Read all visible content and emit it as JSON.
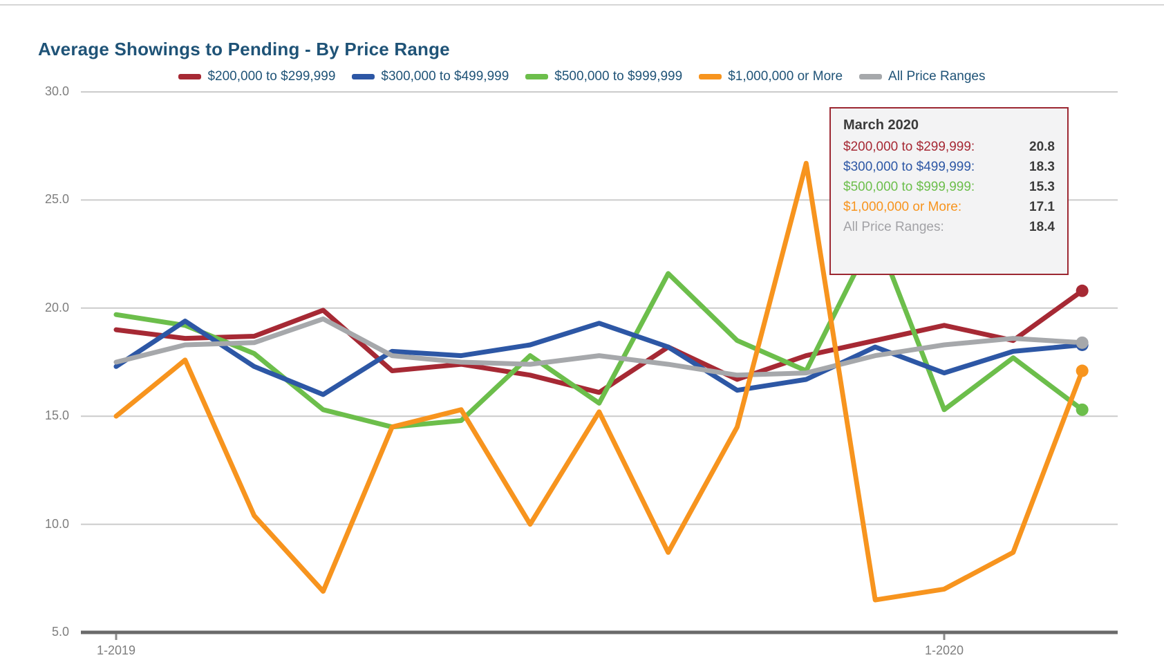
{
  "page": {
    "title": "Average Showings to Pending - By Price Range"
  },
  "colors": {
    "title_text": "#1f5377",
    "axis_text": "#7e7e7e",
    "gridline": "#cbcbcb",
    "axis_line": "#6a6a6a",
    "tooltip_border": "#9c2731",
    "tooltip_background": "#f3f3f4",
    "tooltip_value_text": "#3b3b3b"
  },
  "chart_data": {
    "type": "line",
    "title": "Average Showings to Pending - By Price Range",
    "legend_position": "top",
    "grid": "horizontal",
    "x_axis": {
      "months": [
        "1-2019",
        "2-2019",
        "3-2019",
        "4-2019",
        "5-2019",
        "6-2019",
        "7-2019",
        "8-2019",
        "9-2019",
        "10-2019",
        "11-2019",
        "12-2019",
        "1-2020",
        "2-2020",
        "3-2020"
      ],
      "tick_labels_shown": [
        {
          "label": "1-2019",
          "month_index": 0
        },
        {
          "label": "1-2020",
          "month_index": 12
        }
      ]
    },
    "y_axis": {
      "range": [
        5.0,
        30.0
      ],
      "tick_labels": [
        {
          "label": "30.0",
          "value": 30
        },
        {
          "label": "25.0",
          "value": 25
        },
        {
          "label": "20.0",
          "value": 20
        },
        {
          "label": "15.0",
          "value": 15
        },
        {
          "label": "10.0",
          "value": 10
        },
        {
          "label": "5.0",
          "value": 5
        }
      ],
      "gridline_values": [
        30,
        25,
        20,
        15,
        10
      ]
    },
    "series": [
      {
        "name": "$200,000 to $299,999",
        "color": "#a62934",
        "values": [
          19.0,
          18.6,
          18.7,
          19.9,
          17.1,
          17.4,
          16.9,
          16.1,
          18.2,
          16.7,
          17.8,
          18.5,
          19.2,
          18.5,
          20.8
        ]
      },
      {
        "name": "$300,000 to $499,999",
        "color": "#2d57a5",
        "values": [
          17.3,
          19.4,
          17.3,
          16.0,
          18.0,
          17.8,
          18.3,
          19.3,
          18.2,
          16.2,
          16.7,
          18.2,
          17.0,
          18.0,
          18.3
        ]
      },
      {
        "name": "$500,000 to $999,999",
        "color": "#6cbe4b",
        "values": [
          19.7,
          19.2,
          17.9,
          15.3,
          14.5,
          14.8,
          17.8,
          15.6,
          21.6,
          18.5,
          17.1,
          23.5,
          15.3,
          17.7,
          15.3
        ]
      },
      {
        "name": "$1,000,000 or More",
        "color": "#f7941e",
        "values": [
          15.0,
          17.6,
          10.4,
          6.9,
          14.5,
          15.3,
          10.0,
          15.2,
          8.7,
          14.5,
          26.7,
          6.5,
          7.0,
          8.7,
          17.1
        ]
      },
      {
        "name": "All Price Ranges",
        "color": "#a6a8ab",
        "values": [
          17.5,
          18.3,
          18.4,
          19.5,
          17.8,
          17.5,
          17.4,
          17.8,
          17.4,
          16.9,
          17.0,
          17.8,
          18.3,
          18.6,
          18.4
        ]
      }
    ],
    "end_point_dots": true
  },
  "tooltip": {
    "title": "March 2020",
    "rows": [
      {
        "label": "$200,000 to $299,999:",
        "value": "20.8",
        "color": "#a62934"
      },
      {
        "label": "$300,000 to $499,999:",
        "value": "18.3",
        "color": "#2d57a5"
      },
      {
        "label": "$500,000 to $999,999:",
        "value": "15.3",
        "color": "#6cbe4b"
      },
      {
        "label": "$1,000,000 or More:",
        "value": "17.1",
        "color": "#f7941e"
      },
      {
        "label": "All Price Ranges:",
        "value": "18.4",
        "color": "#a2a2a6"
      }
    ]
  }
}
